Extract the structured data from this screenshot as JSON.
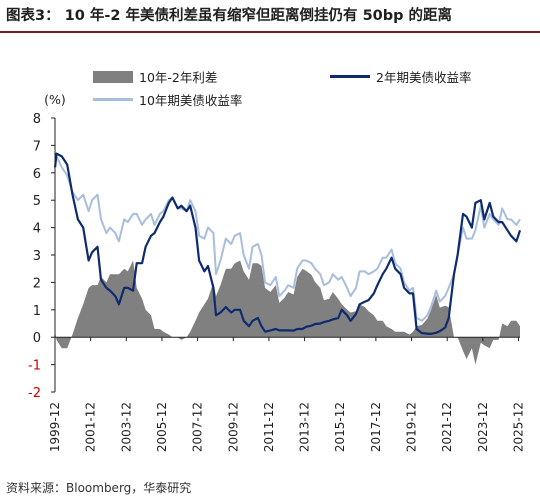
{
  "title": "图表3： 10 年-2 年美债利差虽有缩窄但距离倒挂仍有 50bp 的距离",
  "source": "资料来源：Bloomberg，华泰研究",
  "colors": {
    "spread": "#808080",
    "yield_2y": "#0f2a6e",
    "yield_10y": "#a8bedc",
    "negative_tick": "#cc0000",
    "rule": "#7a1f28"
  },
  "chart_data": {
    "type": "line",
    "ylabel": "(%)",
    "ylim": [
      -2,
      8
    ],
    "yticks": [
      "8",
      "7",
      "6",
      "5",
      "4",
      "3",
      "2",
      "1",
      "0",
      "-1",
      "-2"
    ],
    "xlim": [
      1999.917,
      2026.0
    ],
    "xticks": [
      "1999-12",
      "2001-12",
      "2003-12",
      "2005-12",
      "2007-12",
      "2009-12",
      "2011-12",
      "2013-12",
      "2015-12",
      "2017-12",
      "2019-12",
      "2021-12",
      "2023-12",
      "2025-12"
    ],
    "legend": [
      "10年-2年利差",
      "2年期美债收益率",
      "10年期美债收益率"
    ],
    "series": [
      {
        "name": "10年期美债收益率",
        "kind": "line",
        "x": [
          1999.92,
          2000.0,
          2000.3,
          2000.6,
          2000.9,
          2001.2,
          2001.5,
          2001.8,
          2002.0,
          2002.3,
          2002.5,
          2002.8,
          2003.0,
          2003.3,
          2003.5,
          2003.8,
          2004.0,
          2004.3,
          2004.5,
          2004.8,
          2005.0,
          2005.3,
          2005.5,
          2005.8,
          2006.0,
          2006.3,
          2006.5,
          2006.8,
          2007.0,
          2007.3,
          2007.5,
          2007.8,
          2008.0,
          2008.3,
          2008.5,
          2008.8,
          2008.95,
          2009.2,
          2009.5,
          2009.8,
          2010.0,
          2010.3,
          2010.5,
          2010.8,
          2011.0,
          2011.3,
          2011.5,
          2011.7,
          2012.0,
          2012.3,
          2012.5,
          2012.8,
          2013.0,
          2013.3,
          2013.5,
          2013.8,
          2014.0,
          2014.3,
          2014.5,
          2014.8,
          2015.0,
          2015.3,
          2015.5,
          2015.8,
          2016.0,
          2016.3,
          2016.5,
          2016.8,
          2017.0,
          2017.3,
          2017.5,
          2017.8,
          2018.0,
          2018.3,
          2018.5,
          2018.8,
          2019.0,
          2019.3,
          2019.5,
          2019.8,
          2020.0,
          2020.2,
          2020.5,
          2020.8,
          2021.0,
          2021.3,
          2021.5,
          2021.8,
          2022.0,
          2022.3,
          2022.5,
          2022.8,
          2023.0,
          2023.3,
          2023.5,
          2023.8,
          2024.0,
          2024.3,
          2024.5,
          2024.8,
          2025.0,
          2025.3,
          2025.5,
          2025.8,
          2026.0
        ],
        "values": [
          6.4,
          6.6,
          6.2,
          5.9,
          5.3,
          5.0,
          5.2,
          4.6,
          5.0,
          5.2,
          4.3,
          3.8,
          4.0,
          3.8,
          3.5,
          4.3,
          4.2,
          4.5,
          4.5,
          4.1,
          4.3,
          4.5,
          4.1,
          4.5,
          4.6,
          5.0,
          5.1,
          4.7,
          4.7,
          4.6,
          5.0,
          4.6,
          3.7,
          3.6,
          4.0,
          3.8,
          2.3,
          2.8,
          3.6,
          3.4,
          3.7,
          3.8,
          3.0,
          2.5,
          3.3,
          3.4,
          3.0,
          2.0,
          1.9,
          2.2,
          1.5,
          1.7,
          1.9,
          1.8,
          2.5,
          2.8,
          2.8,
          2.7,
          2.5,
          2.3,
          1.9,
          2.0,
          2.3,
          2.1,
          2.2,
          1.8,
          1.5,
          1.8,
          2.4,
          2.4,
          2.3,
          2.4,
          2.5,
          2.9,
          2.9,
          3.2,
          2.7,
          2.5,
          2.0,
          1.7,
          1.8,
          0.7,
          0.6,
          0.8,
          1.1,
          1.7,
          1.3,
          1.5,
          1.8,
          2.3,
          3.0,
          4.0,
          3.6,
          3.6,
          3.9,
          4.8,
          4.0,
          4.5,
          4.3,
          4.1,
          4.7,
          4.3,
          4.3,
          4.1,
          4.3
        ]
      },
      {
        "name": "2年期美债收益率",
        "kind": "line",
        "x": [
          1999.92,
          2000.0,
          2000.3,
          2000.6,
          2000.9,
          2001.2,
          2001.5,
          2001.8,
          2002.0,
          2002.3,
          2002.5,
          2002.8,
          2003.0,
          2003.3,
          2003.5,
          2003.8,
          2004.0,
          2004.3,
          2004.5,
          2004.8,
          2005.0,
          2005.3,
          2005.5,
          2005.8,
          2006.0,
          2006.3,
          2006.5,
          2006.8,
          2007.0,
          2007.3,
          2007.5,
          2007.8,
          2008.0,
          2008.3,
          2008.5,
          2008.8,
          2008.95,
          2009.2,
          2009.5,
          2009.8,
          2010.0,
          2010.3,
          2010.5,
          2010.8,
          2011.0,
          2011.3,
          2011.5,
          2011.7,
          2012.0,
          2012.3,
          2012.5,
          2012.8,
          2013.0,
          2013.3,
          2013.5,
          2013.8,
          2014.0,
          2014.3,
          2014.5,
          2014.8,
          2015.0,
          2015.3,
          2015.5,
          2015.8,
          2016.0,
          2016.3,
          2016.5,
          2016.8,
          2017.0,
          2017.3,
          2017.5,
          2017.8,
          2018.0,
          2018.3,
          2018.5,
          2018.8,
          2019.0,
          2019.3,
          2019.5,
          2019.8,
          2020.0,
          2020.2,
          2020.5,
          2020.8,
          2021.0,
          2021.3,
          2021.5,
          2021.8,
          2022.0,
          2022.3,
          2022.5,
          2022.8,
          2023.0,
          2023.3,
          2023.5,
          2023.8,
          2024.0,
          2024.3,
          2024.5,
          2024.8,
          2025.0,
          2025.3,
          2025.5,
          2025.8,
          2026.0
        ],
        "values": [
          6.2,
          6.7,
          6.6,
          6.3,
          5.2,
          4.3,
          4.0,
          2.8,
          3.1,
          3.3,
          2.1,
          1.8,
          1.7,
          1.5,
          1.2,
          1.8,
          1.8,
          1.7,
          2.7,
          2.7,
          3.3,
          3.7,
          3.8,
          4.2,
          4.4,
          4.9,
          5.1,
          4.7,
          4.8,
          4.6,
          4.8,
          4.0,
          2.8,
          2.4,
          2.6,
          1.8,
          0.8,
          0.9,
          1.1,
          0.9,
          1.0,
          1.0,
          0.6,
          0.4,
          0.6,
          0.7,
          0.4,
          0.2,
          0.25,
          0.3,
          0.25,
          0.25,
          0.25,
          0.24,
          0.3,
          0.3,
          0.38,
          0.42,
          0.48,
          0.5,
          0.55,
          0.6,
          0.65,
          0.7,
          1.0,
          0.8,
          0.6,
          0.85,
          1.2,
          1.3,
          1.35,
          1.6,
          1.9,
          2.3,
          2.5,
          2.9,
          2.5,
          2.3,
          1.8,
          1.6,
          1.6,
          0.3,
          0.15,
          0.13,
          0.12,
          0.16,
          0.22,
          0.35,
          0.7,
          2.3,
          3.0,
          4.5,
          4.4,
          4.0,
          4.9,
          5.0,
          4.3,
          4.9,
          4.4,
          4.2,
          4.2,
          3.9,
          3.7,
          3.5,
          3.9
        ]
      },
      {
        "name": "10年-2年利差",
        "kind": "area",
        "x": [
          1999.92,
          2000.0,
          2000.3,
          2000.6,
          2000.9,
          2001.2,
          2001.5,
          2001.8,
          2002.0,
          2002.3,
          2002.5,
          2002.8,
          2003.0,
          2003.3,
          2003.5,
          2003.8,
          2004.0,
          2004.3,
          2004.5,
          2004.8,
          2005.0,
          2005.3,
          2005.5,
          2005.8,
          2006.0,
          2006.3,
          2006.5,
          2006.8,
          2007.0,
          2007.3,
          2007.5,
          2007.8,
          2008.0,
          2008.3,
          2008.5,
          2008.8,
          2008.95,
          2009.2,
          2009.5,
          2009.8,
          2010.0,
          2010.3,
          2010.5,
          2010.8,
          2011.0,
          2011.3,
          2011.5,
          2011.7,
          2012.0,
          2012.3,
          2012.5,
          2012.8,
          2013.0,
          2013.3,
          2013.5,
          2013.8,
          2014.0,
          2014.3,
          2014.5,
          2014.8,
          2015.0,
          2015.3,
          2015.5,
          2015.8,
          2016.0,
          2016.3,
          2016.5,
          2016.8,
          2017.0,
          2017.3,
          2017.5,
          2017.8,
          2018.0,
          2018.3,
          2018.5,
          2018.8,
          2019.0,
          2019.3,
          2019.5,
          2019.8,
          2020.0,
          2020.2,
          2020.5,
          2020.8,
          2021.0,
          2021.3,
          2021.5,
          2021.8,
          2022.0,
          2022.3,
          2022.5,
          2022.8,
          2023.0,
          2023.3,
          2023.5,
          2023.8,
          2024.0,
          2024.3,
          2024.5,
          2024.8,
          2025.0,
          2025.3,
          2025.5,
          2025.8,
          2026.0
        ],
        "values": [
          0.2,
          -0.1,
          -0.4,
          -0.4,
          0.1,
          0.7,
          1.2,
          1.8,
          1.9,
          1.9,
          2.2,
          2.0,
          2.3,
          2.3,
          2.3,
          2.5,
          2.4,
          2.8,
          1.8,
          1.4,
          1.0,
          0.8,
          0.3,
          0.3,
          0.2,
          0.1,
          0.0,
          0.0,
          -0.1,
          0.0,
          0.2,
          0.6,
          0.9,
          1.2,
          1.4,
          2.0,
          1.5,
          1.9,
          2.5,
          2.5,
          2.7,
          2.8,
          2.4,
          2.1,
          2.7,
          2.7,
          2.6,
          1.8,
          1.65,
          1.9,
          1.25,
          1.45,
          1.65,
          1.56,
          2.2,
          2.5,
          2.42,
          2.28,
          2.02,
          1.8,
          1.35,
          1.4,
          1.65,
          1.4,
          1.2,
          1.0,
          0.9,
          0.95,
          1.2,
          1.1,
          0.95,
          0.8,
          0.6,
          0.6,
          0.4,
          0.3,
          0.2,
          0.2,
          0.2,
          0.1,
          0.2,
          0.4,
          0.45,
          0.67,
          0.98,
          1.54,
          1.08,
          1.15,
          1.1,
          0.0,
          0.0,
          -0.5,
          -0.8,
          -0.4,
          -1.0,
          -0.2,
          -0.3,
          -0.4,
          -0.1,
          -0.1,
          0.5,
          0.4,
          0.6,
          0.6,
          0.4
        ]
      }
    ]
  }
}
